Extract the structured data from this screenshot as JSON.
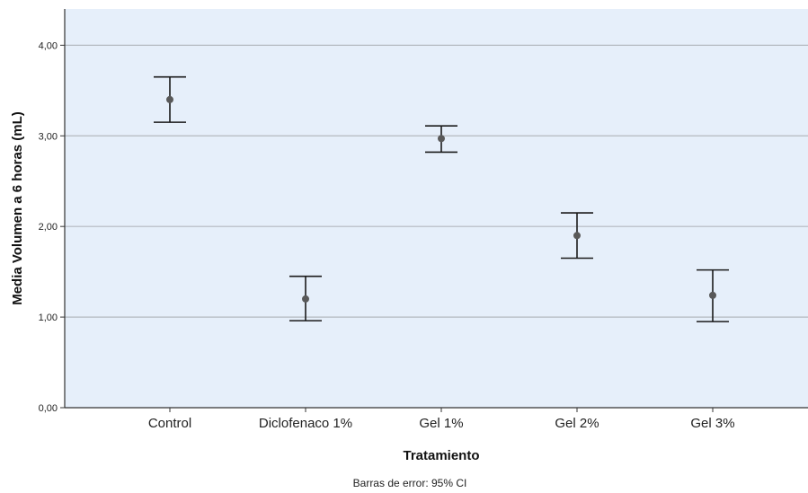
{
  "chart_data": {
    "type": "errorbar",
    "categories": [
      "Control",
      "Diclofenaco 1%",
      "Gel 1%",
      "Gel 2%",
      "Gel 3%"
    ],
    "means": [
      3.4,
      1.2,
      2.97,
      1.9,
      1.24
    ],
    "ci_lower": [
      3.15,
      0.96,
      2.82,
      1.65,
      0.95
    ],
    "ci_upper": [
      3.65,
      1.45,
      3.11,
      2.15,
      1.52
    ],
    "ylim": [
      0,
      4.4
    ],
    "yticks": [
      0,
      1,
      2,
      3,
      4
    ],
    "ytick_labels": [
      "0,00",
      "1,00",
      "2,00",
      "3,00",
      "4,00"
    ],
    "xlabel": "Tratamiento",
    "ylabel": "Media Volumen a 6 horas (mL)",
    "footnote": "Barras de error: 95% CI",
    "grid": "horizontal",
    "colors": {
      "plot_background": "#e6effa",
      "gridline": "#b4b9bf",
      "errorbar": "#1a1a1a",
      "marker": "#595959"
    }
  }
}
